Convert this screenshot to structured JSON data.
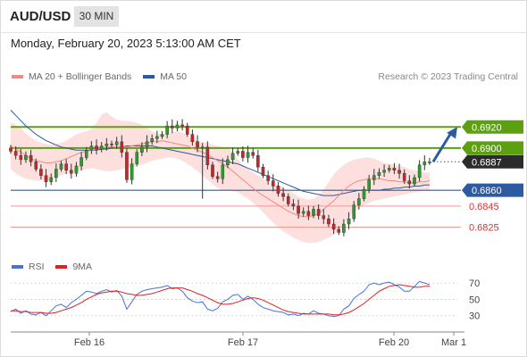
{
  "header": {
    "symbol": "AUD/USD",
    "timeframe": "30 MIN"
  },
  "datetime": "Monday, February 20, 2023 5:13:00 AM CET",
  "legend": {
    "ma20": {
      "label": "MA 20 + Bollinger Bands",
      "color": "#f08a82"
    },
    "ma50": {
      "label": "MA 50",
      "color": "#2d5aa0"
    }
  },
  "credit": "Research © 2023 Trading Central",
  "rsi_legend": {
    "rsi": {
      "label": "RSI",
      "color": "#4a72d4"
    },
    "ma9": {
      "label": "9MA",
      "color": "#dd2222"
    }
  },
  "chart_data": [
    {
      "type": "candlestick",
      "x_ticks": [
        "Feb 16",
        "Feb 17",
        "Feb 20",
        "Mar 1"
      ],
      "y_range": [
        0.6795,
        0.696
      ],
      "levels": [
        {
          "value": 0.692,
          "label": "0.6920",
          "kind": "resistance",
          "color": "#5ca012"
        },
        {
          "value": 0.69,
          "label": "0.6900",
          "kind": "resistance",
          "color": "#5ca012"
        },
        {
          "value": 0.6887,
          "label": "0.6887",
          "kind": "last-price",
          "color": "#2b2b2b"
        },
        {
          "value": 0.686,
          "label": "0.6860",
          "kind": "pivot",
          "color": "#2d5aa0"
        },
        {
          "value": 0.6845,
          "label": "0.6845",
          "kind": "support",
          "color": "#e03030"
        },
        {
          "value": 0.6825,
          "label": "0.6825",
          "kind": "support",
          "color": "#e03030"
        }
      ],
      "close": [
        0.6897,
        0.6893,
        0.6889,
        0.6893,
        0.6887,
        0.688,
        0.6874,
        0.6868,
        0.6872,
        0.688,
        0.6885,
        0.6879,
        0.6876,
        0.6883,
        0.6891,
        0.6898,
        0.6902,
        0.6899,
        0.6902,
        0.6904,
        0.6903,
        0.6906,
        0.6896,
        0.687,
        0.6885,
        0.6896,
        0.6901,
        0.6906,
        0.6909,
        0.6911,
        0.6913,
        0.6921,
        0.6919,
        0.6922,
        0.6921,
        0.6913,
        0.6906,
        0.6901,
        0.6901,
        0.6884,
        0.6873,
        0.6871,
        0.6884,
        0.6889,
        0.6895,
        0.6897,
        0.6891,
        0.6896,
        0.6893,
        0.6882,
        0.6874,
        0.6869,
        0.6864,
        0.6857,
        0.6854,
        0.6847,
        0.6845,
        0.6838,
        0.684,
        0.6836,
        0.6842,
        0.6836,
        0.6833,
        0.6828,
        0.6823,
        0.682,
        0.6828,
        0.6833,
        0.6846,
        0.6852,
        0.6861,
        0.687,
        0.6874,
        0.6877,
        0.6879,
        0.6881,
        0.6879,
        0.6876,
        0.6869,
        0.6866,
        0.6872,
        0.6884,
        0.6887,
        0.6887
      ],
      "bollinger_upper": [
        0.6924,
        0.6922,
        0.6919,
        0.6914,
        0.691,
        0.6907,
        0.6905,
        0.6904,
        0.6903,
        0.6904,
        0.6905,
        0.6907,
        0.691,
        0.6913,
        0.6915,
        0.6916,
        0.6918,
        0.6924,
        0.6932,
        0.6934,
        0.693,
        0.6927,
        0.6926,
        0.6926,
        0.6925,
        0.6924,
        0.6922,
        0.6919,
        0.6916,
        0.6914,
        0.6913,
        0.6913,
        0.6915,
        0.6916,
        0.6915,
        0.6912,
        0.6909,
        0.6907,
        0.6906,
        0.6905,
        0.6903,
        0.6902,
        0.6901,
        0.69,
        0.6897,
        0.6889,
        0.6884,
        0.688,
        0.6877,
        0.6874,
        0.6871,
        0.6868,
        0.6866,
        0.6865,
        0.6863,
        0.686,
        0.6857,
        0.6854,
        0.6852,
        0.6851,
        0.6852,
        0.6855,
        0.6861,
        0.6868,
        0.6875,
        0.688,
        0.6884,
        0.6887,
        0.6889,
        0.689,
        0.6891,
        0.6891,
        0.689,
        0.6888,
        0.6886,
        0.6885,
        0.6884,
        0.6883,
        0.6882,
        0.688,
        0.6879,
        0.6878,
        0.6877,
        0.6877
      ],
      "bollinger_lower": [
        0.688,
        0.6876,
        0.6873,
        0.6871,
        0.687,
        0.6869,
        0.6869,
        0.6869,
        0.687,
        0.6872,
        0.6874,
        0.6876,
        0.6877,
        0.6878,
        0.6879,
        0.688,
        0.6881,
        0.688,
        0.6879,
        0.6878,
        0.6878,
        0.6879,
        0.688,
        0.6881,
        0.6882,
        0.6883,
        0.6884,
        0.6886,
        0.6888,
        0.6889,
        0.689,
        0.6891,
        0.6891,
        0.689,
        0.6888,
        0.6885,
        0.6882,
        0.6878,
        0.6874,
        0.687,
        0.6866,
        0.6862,
        0.686,
        0.686,
        0.6859,
        0.6858,
        0.6855,
        0.6852,
        0.6848,
        0.6844,
        0.6839,
        0.6834,
        0.6829,
        0.6825,
        0.6821,
        0.6818,
        0.6815,
        0.6813,
        0.6811,
        0.681,
        0.681,
        0.6811,
        0.6813,
        0.6815,
        0.6818,
        0.6822,
        0.6828,
        0.6834,
        0.6839,
        0.6843,
        0.6846,
        0.6848,
        0.685,
        0.6851,
        0.6852,
        0.6853,
        0.6854,
        0.6855,
        0.6856,
        0.6857,
        0.6858,
        0.6859,
        0.686,
        0.686
      ],
      "ma20": [
        0.6902,
        0.6899,
        0.6896,
        0.6893,
        0.689,
        0.6888,
        0.6887,
        0.6886,
        0.6886,
        0.6887,
        0.6888,
        0.689,
        0.6892,
        0.6894,
        0.6896,
        0.6897,
        0.6898,
        0.6899,
        0.69,
        0.6901,
        0.6901,
        0.6901,
        0.6901,
        0.6901,
        0.6902,
        0.6903,
        0.6904,
        0.6905,
        0.6906,
        0.6906,
        0.6907,
        0.6906,
        0.6905,
        0.6904,
        0.6903,
        0.6902,
        0.69,
        0.6898,
        0.6896,
        0.6894,
        0.6891,
        0.6888,
        0.6885,
        0.6882,
        0.6878,
        0.6874,
        0.687,
        0.6866,
        0.6862,
        0.6858,
        0.6855,
        0.6852,
        0.6849,
        0.6846,
        0.6843,
        0.684,
        0.6838,
        0.6836,
        0.6835,
        0.6835,
        0.6836,
        0.6838,
        0.6842,
        0.6846,
        0.685,
        0.6855,
        0.686,
        0.6864,
        0.6867,
        0.6869,
        0.687,
        0.6871,
        0.6871,
        0.6871,
        0.687,
        0.6869,
        0.6869,
        0.6868,
        0.6868,
        0.6867,
        0.6867,
        0.6868,
        0.6868,
        0.6869
      ],
      "ma50": [
        0.6936,
        0.6931,
        0.6926,
        0.6921,
        0.6917,
        0.6913,
        0.691,
        0.6907,
        0.6905,
        0.6903,
        0.6901,
        0.69,
        0.6899,
        0.6898,
        0.6898,
        0.6898,
        0.6898,
        0.6898,
        0.6899,
        0.6899,
        0.69,
        0.6901,
        0.6901,
        0.6902,
        0.6902,
        0.6902,
        0.6902,
        0.6902,
        0.6902,
        0.6901,
        0.69,
        0.6899,
        0.6898,
        0.6897,
        0.6896,
        0.6895,
        0.6894,
        0.6893,
        0.6892,
        0.6891,
        0.689,
        0.6889,
        0.6888,
        0.6887,
        0.6886,
        0.6885,
        0.6883,
        0.6881,
        0.6879,
        0.6877,
        0.6875,
        0.6873,
        0.6871,
        0.6869,
        0.6867,
        0.6865,
        0.6863,
        0.6861,
        0.6859,
        0.6858,
        0.6857,
        0.6856,
        0.6855,
        0.6855,
        0.6855,
        0.6856,
        0.6857,
        0.6858,
        0.6859,
        0.686,
        0.686,
        0.686,
        0.686,
        0.686,
        0.6861,
        0.6861,
        0.6862,
        0.6862,
        0.6863,
        0.6863,
        0.6864,
        0.6864,
        0.6865,
        0.6865
      ],
      "forecast_arrow": {
        "from": 0.6887,
        "to": 0.692
      }
    },
    {
      "type": "line",
      "y_ticks": [
        70,
        50,
        30
      ],
      "y_range": [
        10,
        80
      ],
      "series": [
        {
          "name": "RSI",
          "color": "#4a72d4",
          "values": [
            35,
            38,
            33,
            36,
            32,
            31,
            34,
            30,
            36,
            42,
            44,
            40,
            46,
            50,
            55,
            60,
            59,
            57,
            60,
            62,
            59,
            61,
            54,
            38,
            47,
            56,
            60,
            62,
            63,
            64,
            65,
            67,
            63,
            64,
            60,
            52,
            48,
            46,
            47,
            38,
            36,
            39,
            47,
            50,
            55,
            56,
            50,
            54,
            50,
            44,
            40,
            38,
            36,
            35,
            34,
            31,
            32,
            30,
            33,
            32,
            36,
            33,
            32,
            30,
            29,
            30,
            38,
            42,
            51,
            56,
            60,
            68,
            70,
            68,
            70,
            71,
            68,
            65,
            60,
            60,
            66,
            72,
            70,
            68
          ]
        },
        {
          "name": "9MA",
          "color": "#dd2222",
          "values": [
            36,
            36,
            35,
            35,
            34,
            34,
            34,
            33,
            33,
            34,
            36,
            38,
            40,
            43,
            46,
            50,
            53,
            56,
            58,
            59,
            60,
            60,
            59,
            57,
            56,
            55,
            55,
            56,
            57,
            59,
            61,
            63,
            64,
            64,
            64,
            62,
            60,
            57,
            55,
            52,
            49,
            46,
            44,
            44,
            45,
            47,
            49,
            51,
            52,
            51,
            49,
            46,
            43,
            40,
            37,
            35,
            34,
            33,
            32,
            32,
            32,
            32,
            32,
            32,
            31,
            31,
            32,
            34,
            37,
            41,
            45,
            50,
            55,
            60,
            63,
            66,
            67,
            68,
            67,
            66,
            65,
            65,
            66,
            66
          ]
        }
      ]
    }
  ]
}
